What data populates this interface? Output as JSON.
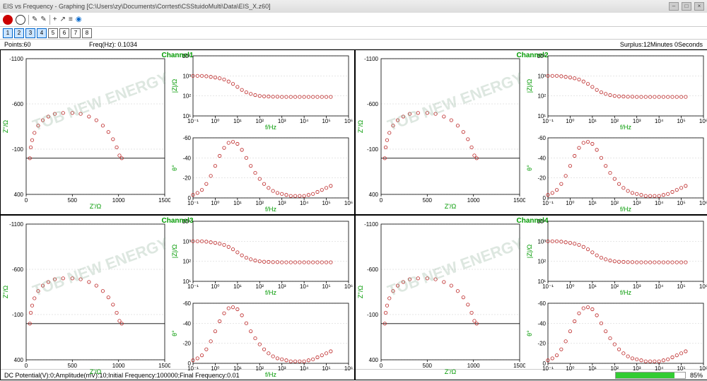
{
  "window": {
    "title": "EIS vs Frequency - Graphing [C:\\Users\\zy\\Documents\\Corrtest\\CSStuidoMulti\\Data\\EIS_X.z60]",
    "min": "–",
    "max": "□",
    "close": "×"
  },
  "toolbar": {
    "items": [
      "●",
      "■",
      "✎",
      "✎",
      "+",
      "↗",
      "≡"
    ]
  },
  "channel_buttons": {
    "labels": [
      "1",
      "2",
      "3",
      "4",
      "5",
      "6",
      "7",
      "8"
    ],
    "active": [
      true,
      true,
      true,
      true,
      false,
      false,
      false,
      false
    ]
  },
  "info": {
    "points": "Points:60",
    "freq": "Freq(Hz): 0.1034",
    "surplus": "Surplus:12Minutes 0Seconds"
  },
  "panels": [
    {
      "label": "Channel1"
    },
    {
      "label": "Channel2"
    },
    {
      "label": "Channel3"
    },
    {
      "label": "Channel4"
    }
  ],
  "chart_style": {
    "marker_stroke": "#b22222",
    "marker_fill": "none",
    "marker_r": 2.2,
    "grid_color": "#cccccc",
    "axis_color": "#000000",
    "label_color_green": "#009900",
    "bg": "#ffffff"
  },
  "nyquist": {
    "xlabel": "Z'/Ω",
    "ylabel": "Z''/Ω",
    "xlim": [
      0,
      1500
    ],
    "ylim_labels": [
      -1100,
      -600,
      -100,
      400
    ],
    "xtick_step": 500,
    "data": [
      {
        "x": 40,
        "y": 0
      },
      {
        "x": 50,
        "y": -120
      },
      {
        "x": 65,
        "y": -200
      },
      {
        "x": 90,
        "y": -280
      },
      {
        "x": 130,
        "y": -360
      },
      {
        "x": 180,
        "y": -420
      },
      {
        "x": 240,
        "y": -460
      },
      {
        "x": 310,
        "y": -490
      },
      {
        "x": 400,
        "y": -500
      },
      {
        "x": 500,
        "y": -500
      },
      {
        "x": 590,
        "y": -490
      },
      {
        "x": 680,
        "y": -460
      },
      {
        "x": 760,
        "y": -420
      },
      {
        "x": 830,
        "y": -360
      },
      {
        "x": 890,
        "y": -290
      },
      {
        "x": 940,
        "y": -210
      },
      {
        "x": 980,
        "y": -120
      },
      {
        "x": 1010,
        "y": -30
      },
      {
        "x": 1035,
        "y": 0
      }
    ]
  },
  "bode_z": {
    "xlabel": "f/Hz",
    "ylabel": "|Z|/Ω",
    "xlim_exp": [
      -1,
      6
    ],
    "ylim_exp": [
      1,
      4
    ],
    "data_logf_logz": [
      [
        -1,
        3.0
      ],
      [
        -0.8,
        3.0
      ],
      [
        -0.6,
        3.0
      ],
      [
        -0.4,
        2.98
      ],
      [
        -0.2,
        2.95
      ],
      [
        0,
        2.92
      ],
      [
        0.2,
        2.88
      ],
      [
        0.4,
        2.82
      ],
      [
        0.6,
        2.72
      ],
      [
        0.8,
        2.6
      ],
      [
        1.0,
        2.45
      ],
      [
        1.2,
        2.3
      ],
      [
        1.4,
        2.18
      ],
      [
        1.6,
        2.1
      ],
      [
        1.8,
        2.04
      ],
      [
        2.0,
        2.0
      ],
      [
        2.2,
        1.98
      ],
      [
        2.4,
        1.97
      ],
      [
        2.6,
        1.96
      ],
      [
        2.8,
        1.96
      ],
      [
        3.0,
        1.95
      ],
      [
        3.2,
        1.95
      ],
      [
        3.4,
        1.95
      ],
      [
        3.6,
        1.95
      ],
      [
        3.8,
        1.95
      ],
      [
        4.0,
        1.95
      ],
      [
        4.2,
        1.95
      ],
      [
        4.4,
        1.95
      ],
      [
        4.6,
        1.95
      ],
      [
        4.8,
        1.95
      ],
      [
        5.0,
        1.95
      ],
      [
        5.2,
        1.95
      ]
    ]
  },
  "bode_phase": {
    "xlabel": "f/Hz",
    "ylabel": "θ°",
    "xlim_exp": [
      -1,
      6
    ],
    "ylim": [
      0,
      -60
    ],
    "ytick_step": -20,
    "data_logf_phase": [
      [
        -1,
        -3
      ],
      [
        -0.8,
        -5
      ],
      [
        -0.6,
        -8
      ],
      [
        -0.4,
        -14
      ],
      [
        -0.2,
        -22
      ],
      [
        0,
        -32
      ],
      [
        0.2,
        -42
      ],
      [
        0.4,
        -50
      ],
      [
        0.6,
        -55
      ],
      [
        0.8,
        -56
      ],
      [
        1.0,
        -54
      ],
      [
        1.2,
        -48
      ],
      [
        1.4,
        -40
      ],
      [
        1.6,
        -32
      ],
      [
        1.8,
        -25
      ],
      [
        2.0,
        -19
      ],
      [
        2.2,
        -14
      ],
      [
        2.4,
        -10
      ],
      [
        2.6,
        -7
      ],
      [
        2.8,
        -5
      ],
      [
        3.0,
        -4
      ],
      [
        3.2,
        -3
      ],
      [
        3.4,
        -2
      ],
      [
        3.6,
        -2
      ],
      [
        3.8,
        -2
      ],
      [
        4.0,
        -2
      ],
      [
        4.2,
        -3
      ],
      [
        4.4,
        -4
      ],
      [
        4.6,
        -6
      ],
      [
        4.8,
        -8
      ],
      [
        5.0,
        -10
      ],
      [
        5.2,
        -12
      ]
    ]
  },
  "status": {
    "text": "DC Potential(V):0;Amplitude(mV):10;Initial Frequency:100000;Final Frequency:0.01",
    "progress_pct": 85,
    "progress_label": "85%"
  },
  "watermark": "TOB NEW ENERGY"
}
